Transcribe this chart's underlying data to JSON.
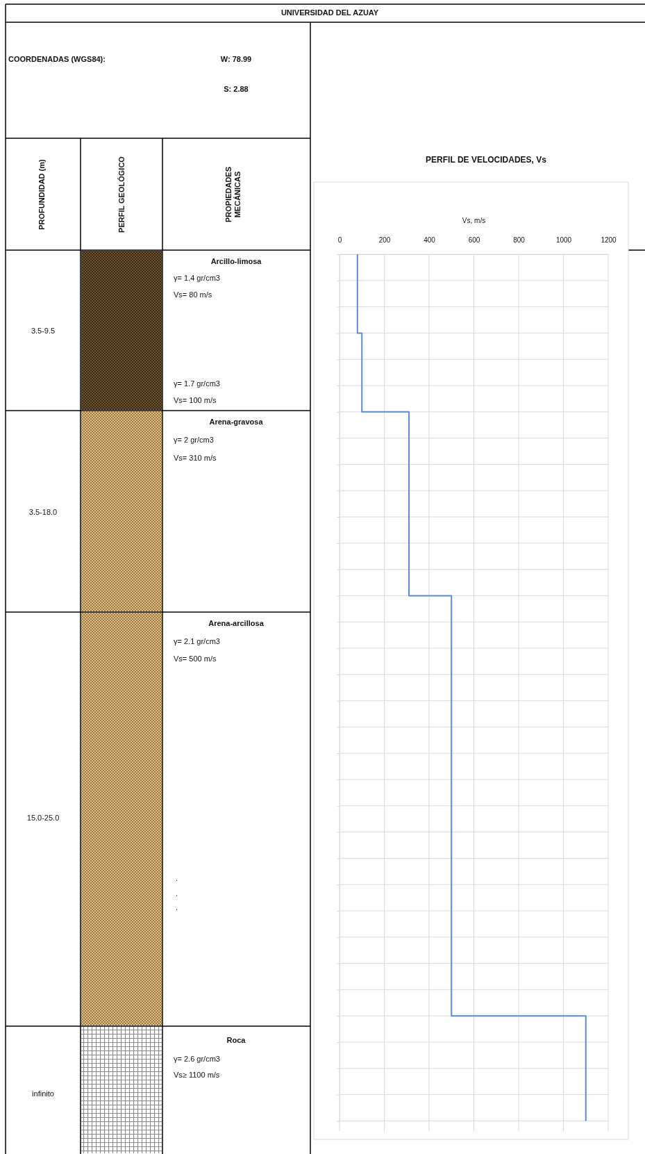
{
  "chart_data": {
    "type": "step",
    "orientation": "horizontal",
    "title": "PERFIL DE VELOCIDADES, Vs",
    "xlabel": "Vs, m/s",
    "xlim": [
      0,
      1200
    ],
    "xticks": [
      0,
      200,
      400,
      600,
      800,
      1000,
      1200
    ],
    "categories": [
      null,
      null,
      null,
      null,
      null,
      null,
      null,
      null,
      null,
      null,
      null,
      null,
      null,
      null,
      null,
      null,
      null,
      null,
      null,
      null,
      null,
      null,
      null,
      null,
      null,
      null,
      null,
      null,
      null,
      null,
      null,
      null,
      null,
      null
    ],
    "tick_labels": "x",
    "grid": true,
    "marker": "none",
    "line_style": "solid",
    "series": [
      {
        "color": "#5b8bd0",
        "values": [
          80,
          80,
          80,
          100,
          100,
          100,
          310,
          310,
          310,
          310,
          310,
          310,
          310,
          500,
          500,
          500,
          500,
          500,
          500,
          500,
          500,
          500,
          500,
          500,
          500,
          500,
          500,
          500,
          500,
          1100,
          1100,
          1100,
          1100,
          1100
        ]
      }
    ],
    "annotations": [
      "UNIVERSIDAD DEL AZUAY",
      "COORDENADAS (WGS84):",
      "W: 78.99",
      "S: 2.88",
      "PROFUNDIDAD (m)",
      "PERFIL GEOLÓGICO",
      "PROPIEDADES MECÁNICAS",
      "3.5-9.5",
      "Arcillo-limosa",
      "γ=   1.4 gr/cm3",
      "Vs=   80 m/s",
      "γ=   1.7 gr/cm3",
      "Vs=  100 m/s",
      "3.5-18.0",
      "Arena-gravosa",
      "γ=      2 gr/cm3",
      "Vs=  310 m/s",
      "15.0-25.0",
      "Arena-arcillosa",
      "γ=   2.1 gr/cm3",
      "Vs=  500 m/s",
      ".",
      ".",
      ".",
      "infinito",
      "Roca",
      "γ=   2.6 gr/cm3",
      "Vs≥ 1100 m/s"
    ]
  }
}
